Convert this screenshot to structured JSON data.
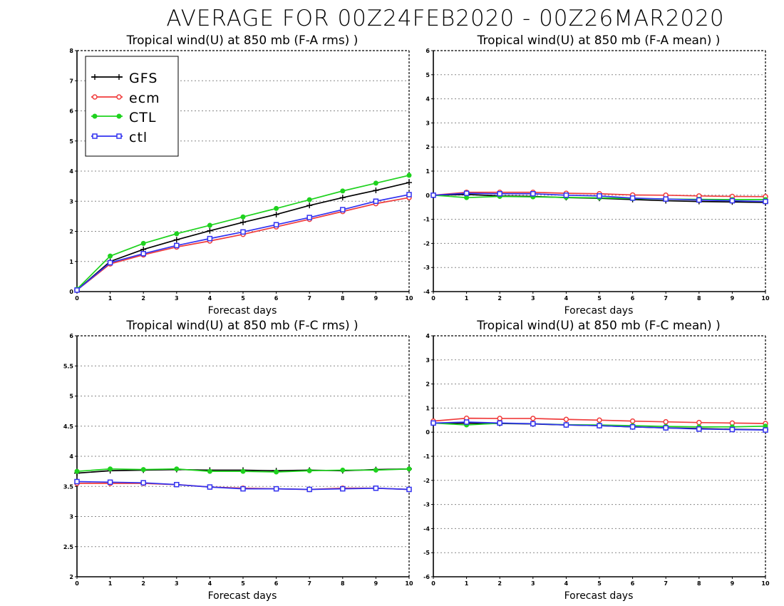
{
  "figure": {
    "title": "AVERAGE FOR 00Z24FEB2020 - 00Z26MAR2020"
  },
  "legend": {
    "entries": [
      "GFS",
      "ecm",
      "CTL",
      "ctl"
    ]
  },
  "colors": {
    "GFS": "#000000",
    "ecm": "#f03c3c",
    "CTL": "#1ed21e",
    "ctl": "#3232f0",
    "grid": "#888888"
  },
  "chart_data": [
    {
      "type": "line",
      "title": "Tropical wind(U) at 850 mb (F-A rms) )",
      "xlabel": "Forecast days",
      "ylabel": "",
      "x": [
        0,
        1,
        2,
        3,
        4,
        5,
        6,
        7,
        8,
        9,
        10
      ],
      "xlim": [
        0,
        10
      ],
      "ylim": [
        0,
        8
      ],
      "yticks": [
        0,
        1,
        2,
        3,
        4,
        5,
        6,
        7,
        8
      ],
      "ytick_labels": [
        "0",
        "1",
        "2",
        "3",
        "4",
        "5",
        "6",
        "7",
        "8"
      ],
      "grid": true,
      "legend_position": "top-left",
      "series": [
        {
          "name": "GFS",
          "marker": "plus",
          "values": [
            0.05,
            1.0,
            1.4,
            1.72,
            2.02,
            2.3,
            2.56,
            2.86,
            3.12,
            3.36,
            3.62
          ]
        },
        {
          "name": "ecm",
          "marker": "circle-open",
          "values": [
            0.05,
            0.92,
            1.22,
            1.48,
            1.68,
            1.9,
            2.15,
            2.4,
            2.66,
            2.92,
            3.12
          ]
        },
        {
          "name": "CTL",
          "marker": "circle-filled",
          "values": [
            0.08,
            1.18,
            1.6,
            1.92,
            2.2,
            2.48,
            2.76,
            3.05,
            3.34,
            3.6,
            3.86
          ]
        },
        {
          "name": "ctl",
          "marker": "square-open",
          "values": [
            0.05,
            0.96,
            1.26,
            1.53,
            1.76,
            1.98,
            2.22,
            2.46,
            2.72,
            3.0,
            3.22
          ]
        }
      ]
    },
    {
      "type": "line",
      "title": "Tropical wind(U) at 850 mb (F-A mean) )",
      "xlabel": "Forecast days",
      "ylabel": "",
      "x": [
        0,
        1,
        2,
        3,
        4,
        5,
        6,
        7,
        8,
        9,
        10
      ],
      "xlim": [
        0,
        10
      ],
      "ylim": [
        -4,
        6
      ],
      "yticks": [
        -4,
        -3,
        -2,
        -1,
        0,
        1,
        2,
        3,
        4,
        5,
        6
      ],
      "ytick_labels": [
        "-4",
        "-3",
        "-2",
        "-1",
        "0",
        "1",
        "2",
        "3",
        "4",
        "5",
        "6"
      ],
      "grid": true,
      "series": [
        {
          "name": "GFS",
          "marker": "plus",
          "values": [
            0.0,
            0.03,
            -0.03,
            -0.05,
            -0.1,
            -0.13,
            -0.18,
            -0.23,
            -0.26,
            -0.28,
            -0.3
          ]
        },
        {
          "name": "ecm",
          "marker": "circle-open",
          "values": [
            0.0,
            0.12,
            0.12,
            0.12,
            0.08,
            0.06,
            0.01,
            0.0,
            -0.03,
            -0.05,
            -0.06
          ]
        },
        {
          "name": "CTL",
          "marker": "circle-filled",
          "values": [
            0.0,
            -0.1,
            -0.05,
            -0.07,
            -0.09,
            -0.11,
            -0.14,
            -0.16,
            -0.17,
            -0.18,
            -0.18
          ]
        },
        {
          "name": "ctl",
          "marker": "square-open",
          "values": [
            0.0,
            0.08,
            0.06,
            0.06,
            0.0,
            -0.03,
            -0.12,
            -0.16,
            -0.2,
            -0.23,
            -0.26
          ]
        }
      ]
    },
    {
      "type": "line",
      "title": "Tropical wind(U) at 850 mb (F-C rms) )",
      "xlabel": "Forecast days",
      "ylabel": "",
      "x": [
        0,
        1,
        2,
        3,
        4,
        5,
        6,
        7,
        8,
        9,
        10
      ],
      "xlim": [
        0,
        10
      ],
      "ylim": [
        2,
        6
      ],
      "yticks": [
        2,
        2.5,
        3,
        3.5,
        4,
        4.5,
        5,
        5.5,
        6
      ],
      "ytick_labels": [
        "2",
        "2.5",
        "3",
        "3.5",
        "4",
        "4.5",
        "5",
        "5.5",
        "6"
      ],
      "grid": true,
      "series": [
        {
          "name": "GFS",
          "marker": "plus",
          "values": [
            3.72,
            3.76,
            3.77,
            3.78,
            3.77,
            3.77,
            3.76,
            3.77,
            3.76,
            3.78,
            3.79
          ]
        },
        {
          "name": "ecm",
          "marker": "circle-open",
          "values": [
            3.55,
            3.55,
            3.55,
            3.53,
            3.49,
            3.47,
            3.46,
            3.45,
            3.47,
            3.47,
            3.45
          ]
        },
        {
          "name": "CTL",
          "marker": "circle-filled",
          "values": [
            3.75,
            3.79,
            3.78,
            3.79,
            3.75,
            3.75,
            3.74,
            3.76,
            3.77,
            3.77,
            3.79
          ]
        },
        {
          "name": "ctl",
          "marker": "square-open",
          "values": [
            3.58,
            3.57,
            3.56,
            3.53,
            3.49,
            3.46,
            3.46,
            3.45,
            3.46,
            3.47,
            3.45
          ]
        }
      ]
    },
    {
      "type": "line",
      "title": "Tropical wind(U) at 850 mb (F-C mean) )",
      "xlabel": "Forecast days",
      "ylabel": "",
      "x": [
        0,
        1,
        2,
        3,
        4,
        5,
        6,
        7,
        8,
        9,
        10
      ],
      "xlim": [
        0,
        10
      ],
      "ylim": [
        -6,
        4
      ],
      "yticks": [
        -6,
        -5,
        -4,
        -3,
        -2,
        -1,
        0,
        1,
        2,
        3,
        4
      ],
      "ytick_labels": [
        "-6",
        "-5",
        "-4",
        "-3",
        "-2",
        "-1",
        "0",
        "1",
        "2",
        "3",
        "4"
      ],
      "grid": true,
      "series": [
        {
          "name": "GFS",
          "marker": "plus",
          "values": [
            0.38,
            0.37,
            0.36,
            0.34,
            0.3,
            0.27,
            0.22,
            0.18,
            0.15,
            0.12,
            0.1
          ]
        },
        {
          "name": "ecm",
          "marker": "circle-open",
          "values": [
            0.46,
            0.58,
            0.57,
            0.57,
            0.53,
            0.5,
            0.46,
            0.43,
            0.4,
            0.38,
            0.36
          ]
        },
        {
          "name": "CTL",
          "marker": "circle-filled",
          "values": [
            0.38,
            0.3,
            0.37,
            0.35,
            0.31,
            0.3,
            0.27,
            0.24,
            0.22,
            0.22,
            0.25
          ]
        },
        {
          "name": "ctl",
          "marker": "square-open",
          "values": [
            0.38,
            0.42,
            0.38,
            0.35,
            0.3,
            0.27,
            0.22,
            0.18,
            0.13,
            0.11,
            0.09
          ]
        }
      ]
    }
  ]
}
